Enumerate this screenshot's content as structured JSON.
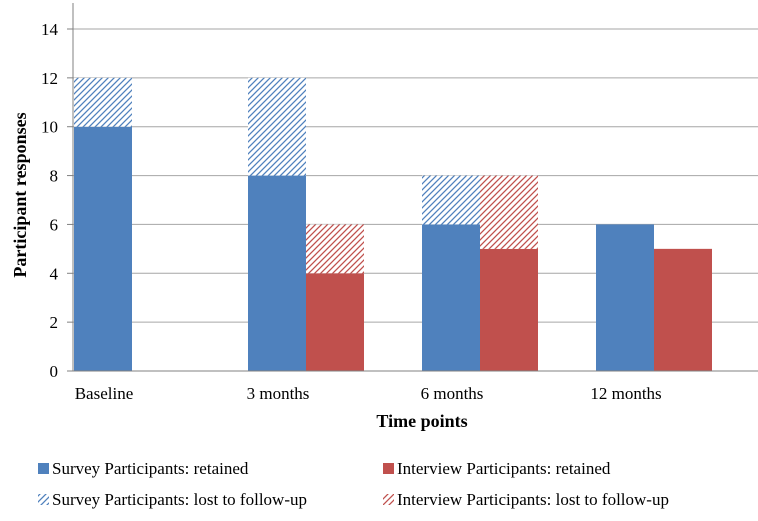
{
  "chart_data": {
    "type": "bar",
    "stacked": true,
    "grouped": true,
    "title": "",
    "xlabel": "Time points",
    "ylabel": "Participant responses",
    "ylim": [
      0,
      14
    ],
    "yticks": [
      0,
      2,
      4,
      6,
      8,
      10,
      12,
      14
    ],
    "grid": true,
    "legend_placement": "bottom",
    "categories": [
      "Baseline",
      "3 months",
      "6 months",
      "12 months"
    ],
    "groups": [
      {
        "key": "survey",
        "stack": [
          {
            "name": "Survey Participants: retained",
            "values": [
              10,
              8,
              6,
              6
            ],
            "color": "#4F81BD",
            "pattern": "solid"
          },
          {
            "name": "Survey Participants: lost to follow-up",
            "values": [
              2,
              4,
              2,
              0
            ],
            "color": "#4F81BD",
            "pattern": "hatch"
          }
        ]
      },
      {
        "key": "interview",
        "stack": [
          {
            "name": "Interview Participants: retained",
            "values": [
              0,
              4,
              5,
              5
            ],
            "color": "#C0504D",
            "pattern": "solid"
          },
          {
            "name": "Interview Participants: lost to follow-up",
            "values": [
              0,
              2,
              3,
              0
            ],
            "color": "#C0504D",
            "pattern": "hatch"
          }
        ]
      }
    ],
    "legend": [
      {
        "label": "Survey Participants: retained",
        "color": "#4F81BD",
        "pattern": "solid"
      },
      {
        "label": "Interview Participants: retained",
        "color": "#C0504D",
        "pattern": "solid"
      },
      {
        "label": "Survey Participants: lost to follow-up",
        "color": "#4F81BD",
        "pattern": "hatch"
      },
      {
        "label": "Interview Participants: lost to follow-up",
        "color": "#C0504D",
        "pattern": "hatch"
      }
    ]
  }
}
